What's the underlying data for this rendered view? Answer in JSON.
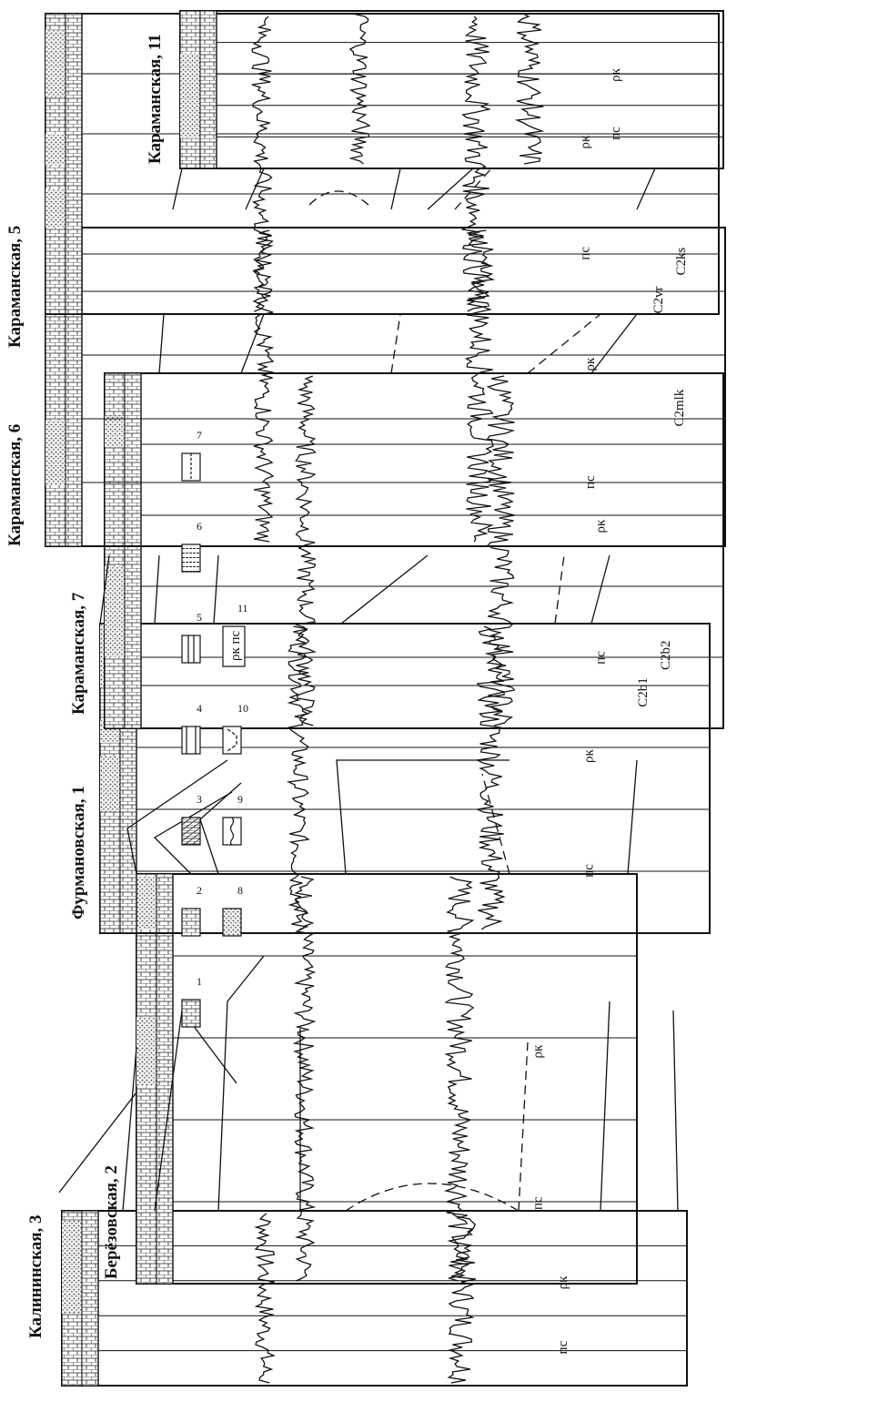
{
  "wells": [
    {
      "name": "Калининская, 3",
      "curves": [
        "пс",
        "ρк"
      ],
      "extra": []
    },
    {
      "name": "Берёзовская, 2",
      "curves": [
        "пс",
        "ρк"
      ],
      "extra": []
    },
    {
      "name": "Фурмановская, 1",
      "curves": [
        "пс",
        "ρк"
      ],
      "extra": [
        "C2b2",
        "C2b1"
      ]
    },
    {
      "name": "Караманская, 7",
      "curves": [
        "пс",
        "ρк"
      ],
      "extra": [
        "C2mlk"
      ]
    },
    {
      "name": "Караманская, 6",
      "curves": [
        "пс",
        "ρк"
      ],
      "extra": [
        "C2ks",
        "C2vr"
      ]
    },
    {
      "name": "Караманская, 5",
      "curves": [
        "пс",
        "ρк"
      ],
      "extra": []
    },
    {
      "name": "Караманская, 11",
      "curves": [
        "пс",
        "ρк"
      ],
      "extra": []
    }
  ],
  "legend": {
    "items": [
      "1",
      "2",
      "3",
      "4",
      "5",
      "6",
      "7",
      "8",
      "9",
      "10",
      "11"
    ],
    "item11_text": "ρк пс"
  }
}
